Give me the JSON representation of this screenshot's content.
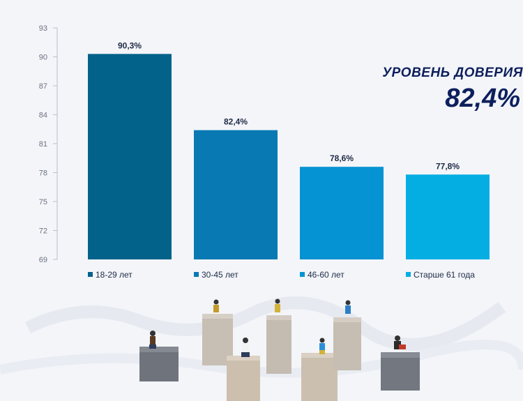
{
  "chart_data": {
    "type": "bar",
    "categories": [
      "18-29 лет",
      "30-45 лет",
      "46-60  лет",
      "Старше 61 года"
    ],
    "values": [
      90.3,
      82.4,
      78.6,
      77.8
    ],
    "data_labels": [
      "90,3%",
      "82,4%",
      "78,6%",
      "77,8%"
    ],
    "ylim": [
      69,
      93
    ],
    "yticks": [
      69,
      72,
      75,
      78,
      81,
      84,
      87,
      90,
      93
    ],
    "colors": [
      "#02628a",
      "#0879b3",
      "#0593d3",
      "#04aee3"
    ],
    "legend_position": "bottom",
    "grid": false
  },
  "trust": {
    "title": "УРОВЕНЬ ДОВЕРИЯ",
    "value": "82,4%"
  },
  "decoration": {
    "image": "miniature-people-on-blocks"
  }
}
